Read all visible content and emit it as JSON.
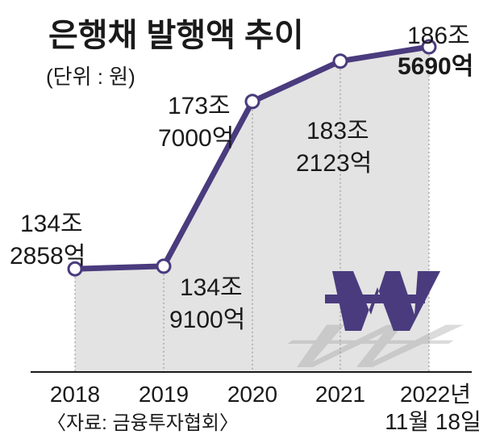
{
  "chart_data": {
    "type": "line",
    "title": "은행채 발행액 추이",
    "unit_note": "(단위 : 원)",
    "source": "〈자료: 금융투자협회〉",
    "x": [
      "2018",
      "2019",
      "2020",
      "2021",
      "2022년"
    ],
    "x_note": "11월 18일",
    "series": [
      {
        "values": [
          134.2858,
          134.91,
          173.7,
          183.2123,
          186.569
        ]
      }
    ],
    "value_labels": [
      [
        "134조",
        "2858억"
      ],
      [
        "134조",
        "9100억"
      ],
      [
        "173조",
        "7000억"
      ],
      [
        "183조",
        "2123억"
      ],
      [
        "186조",
        "5690억"
      ]
    ],
    "ylim": [
      110,
      190
    ],
    "line_color": "#4a3b7e",
    "area_color": "#e3e3e3",
    "icon": "won-sign-icon"
  }
}
